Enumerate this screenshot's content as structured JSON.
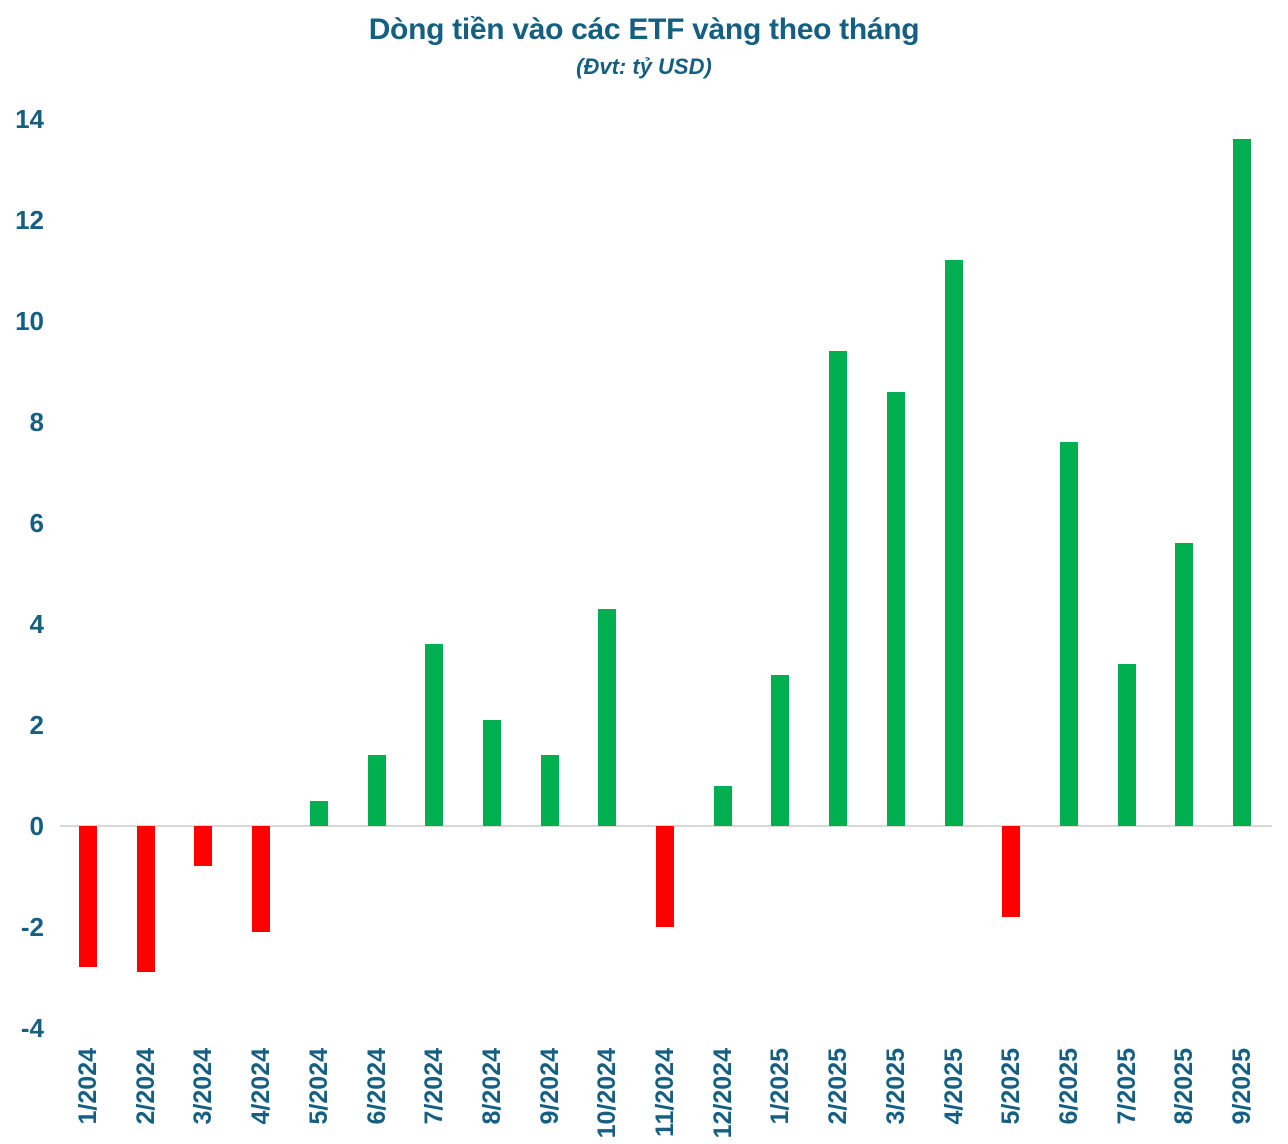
{
  "chart_data": {
    "type": "bar",
    "title": "Dòng tiền vào các ETF vàng theo tháng",
    "subtitle": "(Đvt: tỷ USD)",
    "categories": [
      "1/2024",
      "2/2024",
      "3/2024",
      "4/2024",
      "5/2024",
      "6/2024",
      "7/2024",
      "8/2024",
      "9/2024",
      "10/2024",
      "11/2024",
      "12/2024",
      "1/2025",
      "2/2025",
      "3/2025",
      "4/2025",
      "5/2025",
      "6/2025",
      "7/2025",
      "8/2025",
      "9/2025"
    ],
    "values": [
      -2.8,
      -2.9,
      -0.8,
      -2.1,
      0.5,
      1.4,
      3.6,
      2.1,
      1.4,
      4.3,
      -2.0,
      0.8,
      3.0,
      9.4,
      8.6,
      11.2,
      -1.8,
      7.6,
      3.2,
      5.6,
      13.6
    ],
    "xlabel": "",
    "ylabel": "",
    "ylim": [
      -4,
      14
    ],
    "ytick_labels": [
      "14",
      "12",
      "10",
      "8",
      "6",
      "4",
      "2",
      "0",
      "-2",
      "-4"
    ],
    "ytick_values": [
      14,
      12,
      10,
      8,
      6,
      4,
      2,
      0,
      -2,
      -4
    ],
    "grid": false,
    "legend_position": "none"
  },
  "colors": {
    "positive_bar": "#00B050",
    "negative_bar": "#FF0000",
    "axis_text": "#156082",
    "zero_line": "#D9D9D9",
    "background": "#FFFFFF"
  }
}
